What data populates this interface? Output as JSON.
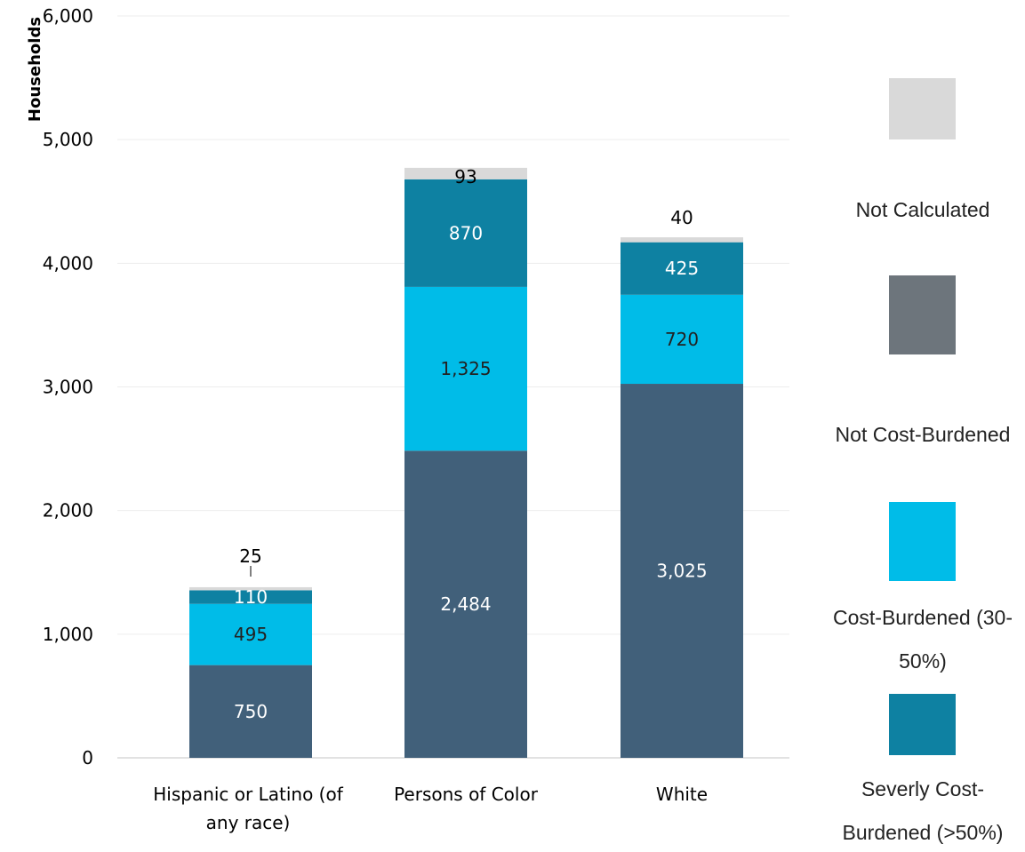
{
  "chart_data": {
    "type": "bar",
    "stacked": true,
    "title": "",
    "xlabel": "",
    "ylabel": "Households",
    "ylim": [
      0,
      6000
    ],
    "yticks": [
      0,
      1000,
      2000,
      3000,
      4000,
      5000,
      6000
    ],
    "ytick_labels": [
      "0",
      "1,000",
      "2,000",
      "3,000",
      "4,000",
      "5,000",
      "6,000"
    ],
    "categories": [
      [
        "Hispanic or Latino (of",
        "any race)"
      ],
      [
        "Persons of Color"
      ],
      [
        "White"
      ]
    ],
    "series": [
      {
        "name": "Not Cost-Burdened",
        "color": "#41607A",
        "label_color": "#ffffff",
        "values": [
          750,
          2484,
          3025
        ],
        "labels": [
          "750",
          "2,484",
          "3,025"
        ]
      },
      {
        "name": "Cost-Burdened (30-50%)",
        "color": "#00BCE8",
        "label_color": "#222222",
        "values": [
          495,
          1325,
          720
        ],
        "labels": [
          "495",
          "1,325",
          "720"
        ]
      },
      {
        "name": "Severly Cost-Burdened (>50%)",
        "color": "#0E81A2",
        "label_color": "#ffffff",
        "values": [
          110,
          870,
          425
        ],
        "labels": [
          "110",
          "870",
          "425"
        ]
      },
      {
        "name": "Not Calculated",
        "color": "#D9D9D9",
        "label_color": "#000000",
        "values": [
          25,
          93,
          40
        ],
        "labels": [
          "25",
          "93",
          "40"
        ]
      }
    ],
    "grid": true,
    "legend": {
      "placement": "right",
      "order": [
        {
          "name": "Not Calculated",
          "color": "#D9D9D9",
          "lines": [
            "Not Calculated"
          ]
        },
        {
          "name": "Not Cost-Burdened",
          "color": "#6D757C",
          "lines": [
            "Not Cost-Burdened"
          ]
        },
        {
          "name": "Cost-Burdened (30-50%)",
          "color": "#00BCE8",
          "lines": [
            "Cost-Burdened (30-",
            "50%)"
          ]
        },
        {
          "name": "Severly Cost-Burdened (>50%)",
          "color": "#0E81A2",
          "lines": [
            "Severly Cost-",
            "Burdened (>50%)"
          ]
        }
      ]
    }
  }
}
